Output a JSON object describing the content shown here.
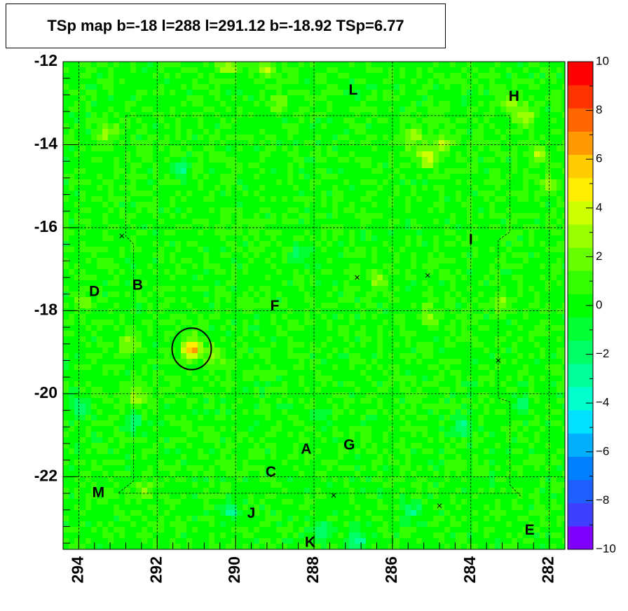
{
  "chart_data": {
    "type": "heatmap",
    "title": "TSp map b=-18 l=288 l=291.12 b=-18.92 TSp=6.77",
    "xlabel": "",
    "ylabel": "",
    "xlim": [
      294.4,
      281.6
    ],
    "ylim": [
      -23.75,
      -12
    ],
    "x_ticks": [
      294,
      292,
      290,
      288,
      286,
      284,
      282
    ],
    "x_tick_labels": [
      "294",
      "292",
      "290",
      "288",
      "286",
      "284",
      "282"
    ],
    "y_ticks": [
      -12,
      -14,
      -16,
      -18,
      -20,
      -22
    ],
    "y_tick_labels": [
      "-12",
      "-14",
      "-16",
      "-18",
      "-20",
      "-22"
    ],
    "colorbar": {
      "min": -10,
      "max": 10,
      "ticks": [
        10,
        8,
        6,
        4,
        2,
        0,
        -2,
        -4,
        -6,
        -8,
        -10
      ],
      "tick_labels": [
        "10",
        "8",
        "6",
        "4",
        "2",
        "0",
        "−2",
        "−4",
        "−6",
        "−8",
        "−10"
      ],
      "colors": [
        "#7f00ff",
        "#3f3fff",
        "#1f5fff",
        "#0080ff",
        "#00b0ff",
        "#00e0ff",
        "#00ffcc",
        "#00ff99",
        "#00ff66",
        "#00ff33",
        "#00ff00",
        "#33ff00",
        "#66ff00",
        "#99ff00",
        "#ccff00",
        "#ffee00",
        "#ffcc00",
        "#ff9900",
        "#ff6600",
        "#ff3300",
        "#ff0000"
      ]
    },
    "peak": {
      "l": 291.12,
      "b": -18.92,
      "TSp": 6.77
    },
    "circle_radius_deg": 0.5,
    "source_labels": [
      {
        "text": "L",
        "l": 287.0,
        "b": -12.7
      },
      {
        "text": "H",
        "l": 282.9,
        "b": -12.85
      },
      {
        "text": "I",
        "l": 284.0,
        "b": -16.3
      },
      {
        "text": "D",
        "l": 293.6,
        "b": -17.55
      },
      {
        "text": "B",
        "l": 292.5,
        "b": -17.4
      },
      {
        "text": "F",
        "l": 289.0,
        "b": -17.9
      },
      {
        "text": "A",
        "l": 288.2,
        "b": -21.35
      },
      {
        "text": "G",
        "l": 287.1,
        "b": -21.25
      },
      {
        "text": "C",
        "l": 289.1,
        "b": -21.9
      },
      {
        "text": "M",
        "l": 293.5,
        "b": -22.4
      },
      {
        "text": "J",
        "l": 289.6,
        "b": -22.9
      },
      {
        "text": "E",
        "l": 282.5,
        "b": -23.3
      },
      {
        "text": "K",
        "l": 288.1,
        "b": -23.6
      }
    ],
    "markers": [
      {
        "l": 292.9,
        "b": -16.2
      },
      {
        "l": 286.9,
        "b": -17.2
      },
      {
        "l": 285.1,
        "b": -17.15
      },
      {
        "l": 283.3,
        "b": -19.2
      },
      {
        "l": 287.5,
        "b": -22.45
      },
      {
        "l": 284.8,
        "b": -22.7
      }
    ],
    "hotspots": [
      {
        "l": 291.12,
        "b": -18.92,
        "value": 6.8
      },
      {
        "l": 290.6,
        "b": -19.1,
        "value": 2.5
      },
      {
        "l": 292.7,
        "b": -18.8,
        "value": 3.0
      },
      {
        "l": 292.5,
        "b": -20.1,
        "value": 3.0
      },
      {
        "l": 285.1,
        "b": -14.3,
        "value": 4.0
      },
      {
        "l": 285.5,
        "b": -13.8,
        "value": 3.0
      },
      {
        "l": 283.0,
        "b": -13.0,
        "value": 2.5
      },
      {
        "l": 282.6,
        "b": -13.3,
        "value": 3.0
      },
      {
        "l": 282.3,
        "b": -14.2,
        "value": 2.5
      },
      {
        "l": 282.0,
        "b": -15.0,
        "value": 2.5
      },
      {
        "l": 290.2,
        "b": -12.1,
        "value": 3.0
      },
      {
        "l": 289.2,
        "b": -12.2,
        "value": 3.0
      },
      {
        "l": 284.7,
        "b": -14.0,
        "value": 3.0
      },
      {
        "l": 293.3,
        "b": -13.7,
        "value": 2.5
      },
      {
        "l": 288.9,
        "b": -13.0,
        "value": 2.0
      },
      {
        "l": 285.1,
        "b": -18.1,
        "value": 2.5
      },
      {
        "l": 286.4,
        "b": -17.2,
        "value": 2.5
      },
      {
        "l": 283.2,
        "b": -17.8,
        "value": 2.0
      },
      {
        "l": 293.9,
        "b": -17.8,
        "value": 2.0
      },
      {
        "l": 292.3,
        "b": -22.3,
        "value": 2.0
      }
    ],
    "coldspots": [
      {
        "l": 286.9,
        "b": -23.5,
        "value": -3.5
      },
      {
        "l": 287.8,
        "b": -23.3,
        "value": -3.0
      },
      {
        "l": 285.5,
        "b": -22.8,
        "value": -2.5
      },
      {
        "l": 291.4,
        "b": -14.6,
        "value": -2.5
      },
      {
        "l": 284.2,
        "b": -20.8,
        "value": -2.5
      },
      {
        "l": 292.6,
        "b": -20.7,
        "value": -2.5
      },
      {
        "l": 294.0,
        "b": -20.3,
        "value": -2.5
      },
      {
        "l": 290.1,
        "b": -22.8,
        "value": -2.5
      },
      {
        "l": 288.3,
        "b": -16.6,
        "value": -2.0
      },
      {
        "l": 287.8,
        "b": -20.5,
        "value": -2.0
      },
      {
        "l": 282.7,
        "b": -20.3,
        "value": -2.5
      }
    ]
  }
}
